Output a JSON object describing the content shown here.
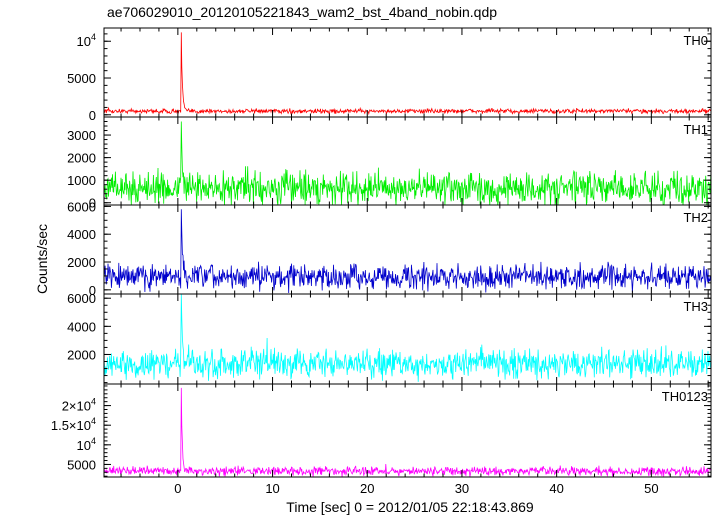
{
  "chart_data": {
    "type": "line",
    "title": "ae706029010_20120105221843_wam2_bst_4band_nobin.qdp",
    "xlabel": "Time [sec] 0 = 2012/01/05 22:18:43.869",
    "ylabel": "Counts/sec",
    "xlim": [
      -7.8,
      56.3
    ],
    "x_ticks": [
      {
        "v": 0,
        "label": "0"
      },
      {
        "v": 10,
        "label": "10"
      },
      {
        "v": 20,
        "label": "20"
      },
      {
        "v": 30,
        "label": "30"
      },
      {
        "v": 40,
        "label": "40"
      },
      {
        "v": 50,
        "label": "50"
      }
    ],
    "x_minor_step": 2,
    "panels": [
      {
        "name": "TH0",
        "color": "#ff0000",
        "ylim": [
          -300,
          11800
        ],
        "y_ticks": [
          {
            "v": 0,
            "label": "0"
          },
          {
            "v": 5000,
            "label": "5000"
          },
          {
            "v": 10000,
            "label": "10^4"
          }
        ],
        "y_minor_step": 1000,
        "baseline_mean": 500,
        "noise_amplitude": 300,
        "spike_x": 0.35,
        "spike_peak": 11200
      },
      {
        "name": "TH1",
        "color": "#00ee00",
        "ylim": [
          -100,
          3800
        ],
        "y_ticks": [
          {
            "v": 0,
            "label": "0"
          },
          {
            "v": 1000,
            "label": "1000"
          },
          {
            "v": 2000,
            "label": "2000"
          },
          {
            "v": 3000,
            "label": "3000"
          }
        ],
        "y_minor_step": 200,
        "baseline_mean": 650,
        "noise_amplitude": 700,
        "spike_x": 0.35,
        "spike_peak": 3600
      },
      {
        "name": "TH2",
        "color": "#0000cc",
        "ylim": [
          -300,
          6100
        ],
        "y_ticks": [
          {
            "v": 0,
            "label": "0"
          },
          {
            "v": 2000,
            "label": "2000"
          },
          {
            "v": 4000,
            "label": "4000"
          },
          {
            "v": 6000,
            "label": "6000"
          }
        ],
        "y_minor_step": 500,
        "baseline_mean": 950,
        "noise_amplitude": 850,
        "spike_x": 0.35,
        "spike_peak": 5800
      },
      {
        "name": "TH3",
        "color": "#00ffff",
        "ylim": [
          -100,
          6300
        ],
        "y_ticks": [
          {
            "v": 2000,
            "label": "2000"
          },
          {
            "v": 4000,
            "label": "4000"
          },
          {
            "v": 6000,
            "label": "6000"
          }
        ],
        "y_minor_step": 500,
        "baseline_mean": 1350,
        "noise_amplitude": 1000,
        "spike_x": 0.35,
        "spike_peak": 6300
      },
      {
        "name": "TH0123",
        "color": "#ff00ff",
        "ylim": [
          1800,
          25500
        ],
        "y_ticks": [
          {
            "v": 5000,
            "label": "5000"
          },
          {
            "v": 10000,
            "label": "10^4"
          },
          {
            "v": 15000,
            "label": "1.5×10^4"
          },
          {
            "v": 20000,
            "label": "2×10^4"
          }
        ],
        "y_minor_step": 1000,
        "baseline_mean": 3300,
        "noise_amplitude": 1100,
        "spike_x": 0.35,
        "spike_peak": 24500
      }
    ]
  }
}
